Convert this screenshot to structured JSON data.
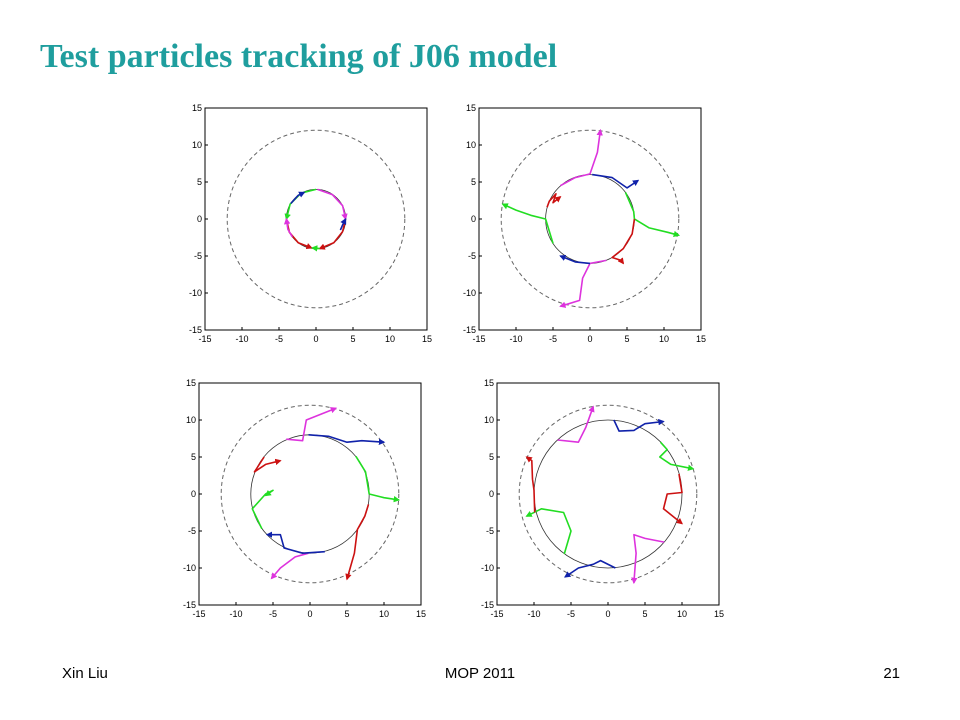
{
  "slide": {
    "title": "Test particles tracking of J06 model",
    "footer_left": "Xin Liu",
    "footer_center": "MOP 2011",
    "footer_right": "21"
  },
  "colors": {
    "red": "#cc1111",
    "green": "#22dd22",
    "blue": "#1022aa",
    "magenta": "#dd33dd",
    "dashed": "#666666",
    "solid": "#333333",
    "text": "#1f9e9e"
  },
  "chart_data": [
    {
      "type": "line",
      "xlim": [
        -15,
        15
      ],
      "ylim": [
        -15,
        15
      ],
      "xticks": [
        "-15",
        "-10",
        "-5",
        "0",
        "5",
        "10",
        "15"
      ],
      "yticks": [
        "-15",
        "-10",
        "-5",
        "0",
        "5",
        "10",
        "15"
      ],
      "dashed_circle_radius": 12,
      "solid_circle_radius": 4,
      "series": [
        {
          "color": "green",
          "points": [
            [
              0,
              4
            ],
            [
              -2,
              3.5
            ],
            [
              -3.5,
              2
            ],
            [
              -4,
              0
            ]
          ]
        },
        {
          "color": "blue",
          "points": [
            [
              -3.4,
              2.1
            ],
            [
              -2.4,
              3.2
            ],
            [
              -1.6,
              3.6
            ]
          ]
        },
        {
          "color": "magenta",
          "points": [
            [
              0.2,
              4
            ],
            [
              2.2,
              3.3
            ],
            [
              3.6,
              1.8
            ],
            [
              4,
              0
            ]
          ]
        },
        {
          "color": "red",
          "points": [
            [
              4,
              0
            ],
            [
              3.6,
              -1.7
            ],
            [
              2.4,
              -3.2
            ],
            [
              0.5,
              -4
            ]
          ]
        },
        {
          "color": "blue",
          "points": [
            [
              3.3,
              -1.5
            ],
            [
              3.6,
              -0.8
            ],
            [
              4,
              0
            ]
          ]
        },
        {
          "color": "red",
          "points": [
            [
              -4,
              0
            ],
            [
              -3.6,
              -1.8
            ],
            [
              -2.4,
              -3.2
            ],
            [
              -0.6,
              -3.9
            ]
          ]
        },
        {
          "color": "magenta",
          "points": [
            [
              -3.2,
              -2.4
            ],
            [
              -3.8,
              -1.4
            ],
            [
              -4,
              0
            ]
          ]
        },
        {
          "color": "green",
          "points": [
            [
              0.5,
              -4
            ],
            [
              -0.5,
              -3.9
            ]
          ]
        }
      ]
    },
    {
      "type": "line",
      "xlim": [
        -15,
        15
      ],
      "ylim": [
        -15,
        15
      ],
      "xticks": [
        "-15",
        "-10",
        "-5",
        "0",
        "5",
        "10",
        "15"
      ],
      "yticks": [
        "-15",
        "-10",
        "-5",
        "0",
        "5",
        "10",
        "15"
      ],
      "dashed_circle_radius": 12,
      "solid_circle_radius": 6,
      "series": [
        {
          "color": "magenta",
          "points": [
            [
              -4,
              4.5
            ],
            [
              -2,
              5.6
            ],
            [
              0,
              6.1
            ],
            [
              1,
              9
            ],
            [
              1.4,
              12
            ]
          ]
        },
        {
          "color": "blue",
          "points": [
            [
              0.3,
              6
            ],
            [
              3,
              5.6
            ],
            [
              5,
              4.2
            ],
            [
              6.5,
              5.2
            ]
          ]
        },
        {
          "color": "green",
          "points": [
            [
              4.8,
              3.6
            ],
            [
              5.9,
              1
            ],
            [
              6,
              0
            ],
            [
              8,
              -1.2
            ],
            [
              10.5,
              -1.8
            ],
            [
              12,
              -2.2
            ]
          ]
        },
        {
          "color": "red",
          "points": [
            [
              6,
              0
            ],
            [
              5.7,
              -2
            ],
            [
              4.5,
              -4
            ],
            [
              3,
              -5.2
            ],
            [
              4.2,
              -5.6
            ],
            [
              4.5,
              -6
            ]
          ]
        },
        {
          "color": "magenta",
          "points": [
            [
              2.2,
              -5.6
            ],
            [
              0,
              -6
            ],
            [
              -1,
              -8
            ],
            [
              -1.4,
              -11
            ],
            [
              -4,
              -11.8
            ]
          ]
        },
        {
          "color": "blue",
          "points": [
            [
              0,
              -6
            ],
            [
              -2,
              -5.8
            ],
            [
              -4,
              -5
            ]
          ]
        },
        {
          "color": "green",
          "points": [
            [
              -5,
              -3.3
            ],
            [
              -6,
              0
            ],
            [
              -8,
              0.5
            ],
            [
              -10,
              1.2
            ],
            [
              -11.8,
              2
            ]
          ]
        },
        {
          "color": "red",
          "points": [
            [
              -5.8,
              1.6
            ],
            [
              -5.5,
              2.4
            ],
            [
              -4.6,
              3.4
            ],
            [
              -5,
              2.2
            ],
            [
              -4,
              3
            ]
          ]
        }
      ]
    },
    {
      "type": "line",
      "xlim": [
        -15,
        15
      ],
      "ylim": [
        -15,
        15
      ],
      "xticks": [
        "-15",
        "-10",
        "-5",
        "0",
        "5",
        "10",
        "15"
      ],
      "yticks": [
        "-15",
        "-10",
        "-5",
        "0",
        "5",
        "10",
        "15"
      ],
      "dashed_circle_radius": 12,
      "solid_circle_radius": 8,
      "series": [
        {
          "color": "magenta",
          "points": [
            [
              -3.2,
              7.4
            ],
            [
              -1,
              7.2
            ],
            [
              -0.5,
              10
            ],
            [
              1.5,
              10.8
            ],
            [
              3.5,
              11.6
            ]
          ]
        },
        {
          "color": "blue",
          "points": [
            [
              -0.2,
              8
            ],
            [
              2.5,
              7.8
            ],
            [
              5,
              7
            ],
            [
              7,
              7.2
            ],
            [
              10,
              7
            ]
          ]
        },
        {
          "color": "green",
          "points": [
            [
              6.2,
              5.1
            ],
            [
              7.5,
              3
            ],
            [
              8,
              0
            ],
            [
              10,
              -0.5
            ],
            [
              12,
              -0.8
            ]
          ]
        },
        {
          "color": "red",
          "points": [
            [
              7.9,
              -1.4
            ],
            [
              7.4,
              -3
            ],
            [
              6.4,
              -4.8
            ],
            [
              6,
              -8
            ],
            [
              5,
              -11.5
            ]
          ]
        },
        {
          "color": "magenta",
          "points": [
            [
              -0.2,
              -8
            ],
            [
              -2,
              -8.5
            ],
            [
              -4,
              -10
            ],
            [
              -5.2,
              -11.4
            ]
          ]
        },
        {
          "color": "blue",
          "points": [
            [
              2,
              -7.8
            ],
            [
              -1,
              -8
            ],
            [
              -3.5,
              -7.3
            ],
            [
              -4,
              -5.5
            ],
            [
              -5.8,
              -5.5
            ]
          ]
        },
        {
          "color": "green",
          "points": [
            [
              -6.5,
              -4.7
            ],
            [
              -7.8,
              -2
            ],
            [
              -6,
              0
            ],
            [
              -5,
              0.5
            ],
            [
              -6,
              -0.2
            ]
          ]
        },
        {
          "color": "red",
          "points": [
            [
              -6.2,
              5
            ],
            [
              -7.5,
              3
            ],
            [
              -6,
              4
            ],
            [
              -4,
              4.5
            ]
          ]
        }
      ]
    },
    {
      "type": "line",
      "xlim": [
        -15,
        15
      ],
      "ylim": [
        -15,
        15
      ],
      "xticks": [
        "-15",
        "-10",
        "-5",
        "0",
        "5",
        "10",
        "15"
      ],
      "yticks": [
        "-15",
        "-10",
        "-5",
        "0",
        "5",
        "10",
        "15"
      ],
      "dashed_circle_radius": 12,
      "solid_circle_radius": 10,
      "series": [
        {
          "color": "magenta",
          "points": [
            [
              -6.8,
              7.3
            ],
            [
              -4,
              7
            ],
            [
              -3,
              9
            ],
            [
              -2,
              11.8
            ]
          ]
        },
        {
          "color": "blue",
          "points": [
            [
              0.8,
              10
            ],
            [
              1.5,
              8.5
            ],
            [
              3.5,
              8.6
            ],
            [
              5,
              9.5
            ],
            [
              7.5,
              9.8
            ]
          ]
        },
        {
          "color": "green",
          "points": [
            [
              7.1,
              7
            ],
            [
              8,
              6
            ],
            [
              7,
              5
            ],
            [
              8.5,
              4
            ],
            [
              11.5,
              3.4
            ]
          ]
        },
        {
          "color": "red",
          "points": [
            [
              9.6,
              2.7
            ],
            [
              10,
              0.2
            ],
            [
              8,
              0
            ],
            [
              7.5,
              -2
            ],
            [
              10,
              -4
            ]
          ]
        },
        {
          "color": "magenta",
          "points": [
            [
              7.6,
              -6.5
            ],
            [
              5,
              -6
            ],
            [
              3.5,
              -5.5
            ],
            [
              3.8,
              -8
            ],
            [
              3.5,
              -12
            ]
          ]
        },
        {
          "color": "blue",
          "points": [
            [
              1,
              -10
            ],
            [
              -1,
              -9
            ],
            [
              -2,
              -9.5
            ],
            [
              -4,
              -10
            ],
            [
              -5.8,
              -11.2
            ]
          ]
        },
        {
          "color": "green",
          "points": [
            [
              -5.9,
              -8.1
            ],
            [
              -5,
              -5
            ],
            [
              -6,
              -2.5
            ],
            [
              -9,
              -2
            ],
            [
              -11,
              -3
            ]
          ]
        },
        {
          "color": "red",
          "points": [
            [
              -9.9,
              -2.5
            ],
            [
              -10,
              0.5
            ],
            [
              -10.2,
              2
            ],
            [
              -10.3,
              4.5
            ],
            [
              -11,
              5
            ]
          ]
        }
      ]
    }
  ]
}
